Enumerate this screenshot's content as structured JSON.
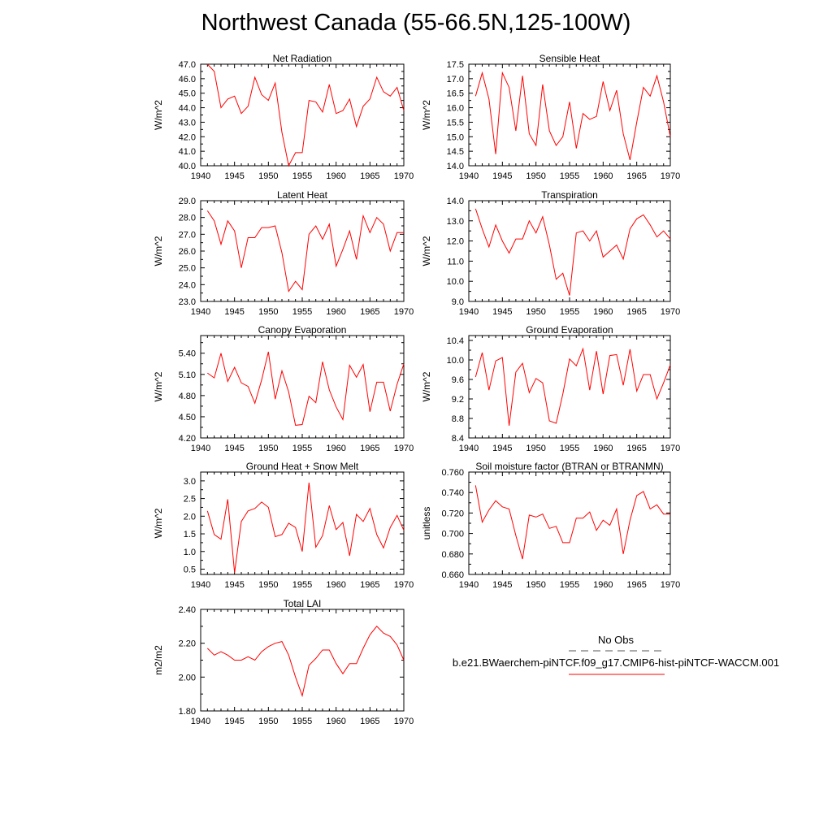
{
  "title": "Northwest Canada (55-66.5N,125-100W)",
  "colors": {
    "model": "#ff0000",
    "obs": "#555555",
    "axis": "#000000"
  },
  "legend": {
    "obs_label": "No Obs",
    "model_label": "b.e21.BWaerchem-piNTCF.f09_g17.CMIP6-hist-piNTCF-WACCM.001"
  },
  "chart_data": [
    {
      "type": "line",
      "title": "Net Radiation",
      "ylabel": "W/m^2",
      "xlim": [
        1940,
        1970
      ],
      "ylim": [
        40.0,
        47.0
      ],
      "xticks": [
        1940,
        1945,
        1950,
        1955,
        1960,
        1965,
        1970
      ],
      "yticks": [
        "40.0",
        "41.0",
        "42.0",
        "43.0",
        "44.0",
        "45.0",
        "46.0",
        "47.0"
      ],
      "x": [
        1941,
        1942,
        1943,
        1944,
        1945,
        1946,
        1947,
        1948,
        1949,
        1950,
        1951,
        1952,
        1953,
        1954,
        1955,
        1956,
        1957,
        1958,
        1959,
        1960,
        1961,
        1962,
        1963,
        1964,
        1965,
        1966,
        1967,
        1968,
        1969,
        1970
      ],
      "series": [
        {
          "values": [
            47.0,
            46.5,
            44.0,
            44.6,
            44.8,
            43.6,
            44.1,
            46.1,
            44.9,
            44.5,
            45.7,
            42.3,
            40.0,
            40.9,
            40.9,
            44.5,
            44.4,
            43.7,
            45.6,
            43.6,
            43.8,
            44.6,
            42.7,
            44.1,
            44.6,
            46.1,
            45.1,
            44.8,
            45.4,
            43.8
          ]
        }
      ]
    },
    {
      "type": "line",
      "title": "Sensible Heat",
      "ylabel": "W/m^2",
      "xlim": [
        1940,
        1970
      ],
      "ylim": [
        14.0,
        17.5
      ],
      "xticks": [
        1940,
        1945,
        1950,
        1955,
        1960,
        1965,
        1970
      ],
      "yticks": [
        "14.0",
        "14.5",
        "15.0",
        "15.5",
        "16.0",
        "16.5",
        "17.0",
        "17.5"
      ],
      "x": [
        1941,
        1942,
        1943,
        1944,
        1945,
        1946,
        1947,
        1948,
        1949,
        1950,
        1951,
        1952,
        1953,
        1954,
        1955,
        1956,
        1957,
        1958,
        1959,
        1960,
        1961,
        1962,
        1963,
        1964,
        1965,
        1966,
        1967,
        1968,
        1969,
        1970
      ],
      "series": [
        {
          "values": [
            16.4,
            17.2,
            16.3,
            14.4,
            17.2,
            16.7,
            15.2,
            17.1,
            15.1,
            14.7,
            16.8,
            15.2,
            14.7,
            15.0,
            16.2,
            14.6,
            15.8,
            15.6,
            15.7,
            16.9,
            15.9,
            16.6,
            15.1,
            14.2,
            15.5,
            16.7,
            16.4,
            17.1,
            16.2,
            15.0
          ]
        }
      ]
    },
    {
      "type": "line",
      "title": "Latent Heat",
      "ylabel": "W/m^2",
      "xlim": [
        1940,
        1970
      ],
      "ylim": [
        23.0,
        29.0
      ],
      "xticks": [
        1940,
        1945,
        1950,
        1955,
        1960,
        1965,
        1970
      ],
      "yticks": [
        "23.0",
        "24.0",
        "25.0",
        "26.0",
        "27.0",
        "28.0",
        "29.0"
      ],
      "x": [
        1941,
        1942,
        1943,
        1944,
        1945,
        1946,
        1947,
        1948,
        1949,
        1950,
        1951,
        1952,
        1953,
        1954,
        1955,
        1956,
        1957,
        1958,
        1959,
        1960,
        1961,
        1962,
        1963,
        1964,
        1965,
        1966,
        1967,
        1968,
        1969,
        1970
      ],
      "series": [
        {
          "values": [
            28.4,
            27.8,
            26.4,
            27.8,
            27.2,
            25.0,
            26.8,
            26.8,
            27.4,
            27.4,
            27.5,
            25.9,
            23.6,
            24.2,
            23.7,
            27.0,
            27.5,
            26.7,
            27.6,
            25.1,
            26.1,
            27.2,
            25.5,
            28.1,
            27.1,
            28.0,
            27.6,
            26.0,
            27.1,
            27.1
          ]
        }
      ]
    },
    {
      "type": "line",
      "title": "Transpiration",
      "ylabel": "W/m^2",
      "xlim": [
        1940,
        1970
      ],
      "ylim": [
        9.0,
        14.0
      ],
      "xticks": [
        1940,
        1945,
        1950,
        1955,
        1960,
        1965,
        1970
      ],
      "yticks": [
        "9.0",
        "10.0",
        "11.0",
        "12.0",
        "13.0",
        "14.0"
      ],
      "x": [
        1941,
        1942,
        1943,
        1944,
        1945,
        1946,
        1947,
        1948,
        1949,
        1950,
        1951,
        1952,
        1953,
        1954,
        1955,
        1956,
        1957,
        1958,
        1959,
        1960,
        1961,
        1962,
        1963,
        1964,
        1965,
        1966,
        1967,
        1968,
        1969,
        1970
      ],
      "series": [
        {
          "values": [
            13.6,
            12.6,
            11.7,
            12.8,
            12.0,
            11.4,
            12.1,
            12.1,
            13.0,
            12.4,
            13.2,
            11.8,
            10.1,
            10.4,
            9.3,
            12.4,
            12.5,
            12.0,
            12.5,
            11.2,
            11.5,
            11.8,
            11.1,
            12.6,
            13.1,
            13.3,
            12.8,
            12.2,
            12.5,
            12.1
          ]
        }
      ]
    },
    {
      "type": "line",
      "title": "Canopy Evaporation",
      "ylabel": "W/m^2",
      "xlim": [
        1940,
        1970
      ],
      "ylim": [
        4.2,
        5.65
      ],
      "xticks": [
        1940,
        1945,
        1950,
        1955,
        1960,
        1965,
        1970
      ],
      "yticks": [
        "4.20",
        "4.50",
        "4.80",
        "5.10",
        "5.40"
      ],
      "x": [
        1941,
        1942,
        1943,
        1944,
        1945,
        1946,
        1947,
        1948,
        1949,
        1950,
        1951,
        1952,
        1953,
        1954,
        1955,
        1956,
        1957,
        1958,
        1959,
        1960,
        1961,
        1962,
        1963,
        1964,
        1965,
        1966,
        1967,
        1968,
        1969,
        1970
      ],
      "series": [
        {
          "values": [
            5.12,
            5.05,
            5.4,
            5.0,
            5.2,
            4.98,
            4.93,
            4.69,
            5.02,
            5.42,
            4.75,
            5.15,
            4.85,
            4.38,
            4.39,
            4.79,
            4.7,
            5.28,
            4.88,
            4.64,
            4.46,
            5.23,
            5.06,
            5.24,
            4.57,
            4.99,
            4.99,
            4.58,
            4.96,
            5.25
          ]
        }
      ]
    },
    {
      "type": "line",
      "title": "Ground Evaporation",
      "ylabel": "W/m^2",
      "xlim": [
        1940,
        1970
      ],
      "ylim": [
        8.4,
        10.5
      ],
      "xticks": [
        1940,
        1945,
        1950,
        1955,
        1960,
        1965,
        1970
      ],
      "yticks": [
        "8.4",
        "8.8",
        "9.2",
        "9.6",
        "10.0",
        "10.4"
      ],
      "x": [
        1941,
        1942,
        1943,
        1944,
        1945,
        1946,
        1947,
        1948,
        1949,
        1950,
        1951,
        1952,
        1953,
        1954,
        1955,
        1956,
        1957,
        1958,
        1959,
        1960,
        1961,
        1962,
        1963,
        1964,
        1965,
        1966,
        1967,
        1968,
        1969,
        1970
      ],
      "series": [
        {
          "values": [
            9.65,
            10.15,
            9.38,
            9.98,
            10.05,
            8.65,
            9.75,
            9.93,
            9.33,
            9.62,
            9.53,
            8.75,
            8.7,
            9.3,
            10.02,
            9.88,
            10.23,
            9.38,
            10.18,
            9.3,
            10.09,
            10.11,
            9.48,
            10.22,
            9.36,
            9.7,
            9.7,
            9.2,
            9.53,
            9.9
          ]
        }
      ]
    },
    {
      "type": "line",
      "title": "Ground Heat + Snow Melt",
      "ylabel": "W/m^2",
      "xlim": [
        1940,
        1970
      ],
      "ylim": [
        0.35,
        3.25
      ],
      "xticks": [
        1940,
        1945,
        1950,
        1955,
        1960,
        1965,
        1970
      ],
      "yticks": [
        "0.5",
        "1.0",
        "1.5",
        "2.0",
        "2.5",
        "3.0"
      ],
      "x": [
        1941,
        1942,
        1943,
        1944,
        1945,
        1946,
        1947,
        1948,
        1949,
        1950,
        1951,
        1952,
        1953,
        1954,
        1955,
        1956,
        1957,
        1958,
        1959,
        1960,
        1961,
        1962,
        1963,
        1964,
        1965,
        1966,
        1967,
        1968,
        1969,
        1970
      ],
      "series": [
        {
          "values": [
            2.15,
            1.48,
            1.35,
            2.48,
            0.4,
            1.85,
            2.15,
            2.22,
            2.4,
            2.25,
            1.42,
            1.48,
            1.8,
            1.68,
            1.0,
            2.95,
            1.12,
            1.45,
            2.3,
            1.62,
            1.82,
            0.88,
            2.05,
            1.85,
            2.22,
            1.48,
            1.1,
            1.68,
            2.02,
            1.6
          ]
        }
      ]
    },
    {
      "type": "line",
      "title": "Soil moisture factor (BTRAN or BTRANMN)",
      "ylabel": "unitless",
      "xlim": [
        1940,
        1970
      ],
      "ylim": [
        0.66,
        0.76
      ],
      "xticks": [
        1940,
        1945,
        1950,
        1955,
        1960,
        1965,
        1970
      ],
      "yticks": [
        "0.660",
        "0.680",
        "0.700",
        "0.720",
        "0.740",
        "0.760"
      ],
      "x": [
        1941,
        1942,
        1943,
        1944,
        1945,
        1946,
        1947,
        1948,
        1949,
        1950,
        1951,
        1952,
        1953,
        1954,
        1955,
        1956,
        1957,
        1958,
        1959,
        1960,
        1961,
        1962,
        1963,
        1964,
        1965,
        1966,
        1967,
        1968,
        1969,
        1970
      ],
      "series": [
        {
          "values": [
            0.747,
            0.711,
            0.723,
            0.732,
            0.726,
            0.724,
            0.698,
            0.675,
            0.718,
            0.716,
            0.719,
            0.705,
            0.707,
            0.691,
            0.691,
            0.715,
            0.715,
            0.721,
            0.703,
            0.713,
            0.708,
            0.724,
            0.68,
            0.713,
            0.737,
            0.741,
            0.724,
            0.728,
            0.719,
            0.719
          ]
        }
      ]
    },
    {
      "type": "line",
      "title": "Total LAI",
      "ylabel": "m2/m2",
      "xlim": [
        1940,
        1970
      ],
      "ylim": [
        1.8,
        2.4
      ],
      "xticks": [
        1940,
        1945,
        1950,
        1955,
        1960,
        1965,
        1970
      ],
      "yticks": [
        "1.80",
        "2.00",
        "2.20",
        "2.40"
      ],
      "x": [
        1941,
        1942,
        1943,
        1944,
        1945,
        1946,
        1947,
        1948,
        1949,
        1950,
        1951,
        1952,
        1953,
        1954,
        1955,
        1956,
        1957,
        1958,
        1959,
        1960,
        1961,
        1962,
        1963,
        1964,
        1965,
        1966,
        1967,
        1968,
        1969,
        1970
      ],
      "series": [
        {
          "values": [
            2.17,
            2.13,
            2.15,
            2.13,
            2.1,
            2.1,
            2.12,
            2.1,
            2.15,
            2.18,
            2.2,
            2.21,
            2.13,
            2.0,
            1.89,
            2.07,
            2.11,
            2.16,
            2.16,
            2.08,
            2.02,
            2.08,
            2.08,
            2.17,
            2.25,
            2.3,
            2.26,
            2.24,
            2.19,
            2.1
          ]
        }
      ]
    }
  ]
}
